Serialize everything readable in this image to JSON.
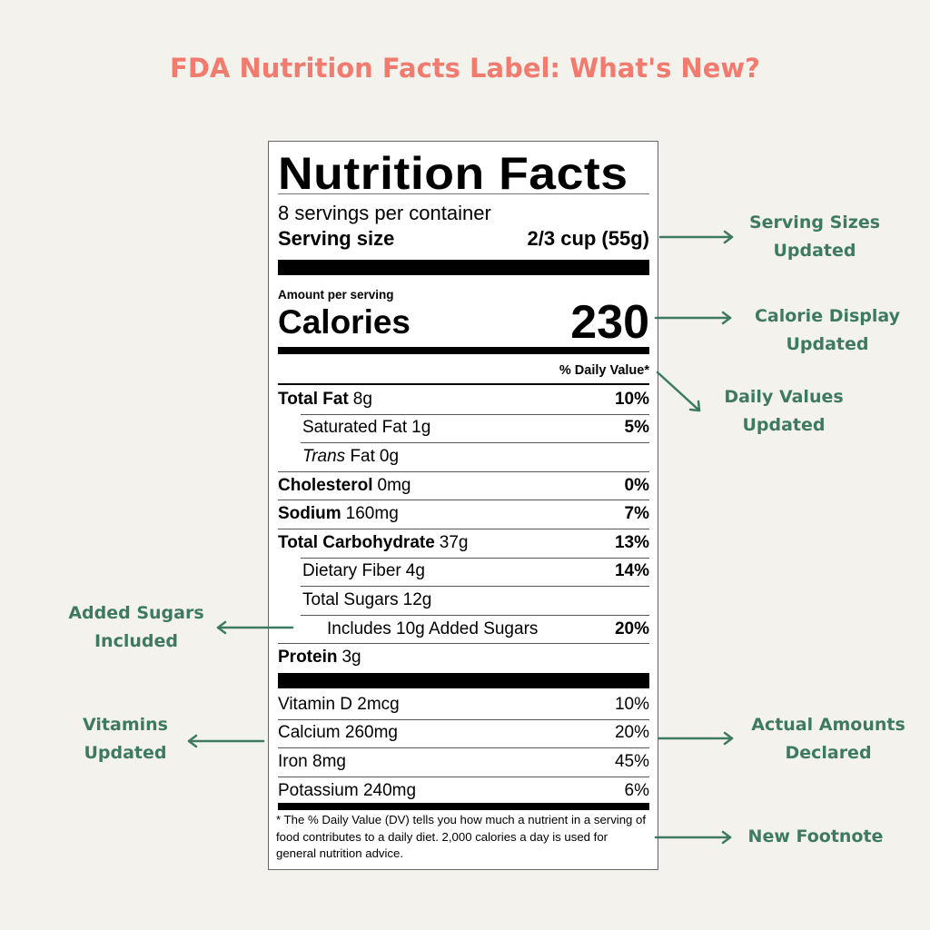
{
  "title": "FDA Nutrition Facts Label: What's New?",
  "label": {
    "heading": "Nutrition Facts",
    "servings": "8 servings per container",
    "serving_size_label": "Serving size",
    "serving_size_value": "2/3 cup (55g)",
    "amount_per_serving": "Amount per serving",
    "calories_label": "Calories",
    "calories_value": "230",
    "dv_header": "% Daily Value*",
    "nutrients": [
      {
        "name": "Total Fat",
        "amount": "8g",
        "dv": "10%",
        "bold": true,
        "indent": 0
      },
      {
        "name": "Saturated Fat",
        "amount": "1g",
        "dv": "5%",
        "bold": false,
        "indent": 1
      },
      {
        "name": "Trans",
        "name_rest": " Fat",
        "amount": "0g",
        "dv": "",
        "bold": false,
        "indent": 1,
        "italic": true
      },
      {
        "name": "Cholesterol",
        "amount": "0mg",
        "dv": "0%",
        "bold": true,
        "indent": 0
      },
      {
        "name": "Sodium",
        "amount": "160mg",
        "dv": "7%",
        "bold": true,
        "indent": 0
      },
      {
        "name": "Total Carbohydrate",
        "amount": "37g",
        "dv": "13%",
        "bold": true,
        "indent": 0
      },
      {
        "name": "Dietary Fiber",
        "amount": "4g",
        "dv": "14%",
        "bold": false,
        "indent": 1
      },
      {
        "name": "Total Sugars",
        "amount": "12g",
        "dv": "",
        "bold": false,
        "indent": 1
      },
      {
        "name": "Includes 10g Added Sugars",
        "amount": "",
        "dv": "20%",
        "bold": false,
        "indent": 2
      },
      {
        "name": "Protein",
        "amount": "3g",
        "dv": "",
        "bold": true,
        "indent": 0
      }
    ],
    "vitamins": [
      {
        "name": "Vitamin D 2mcg",
        "dv": "10%"
      },
      {
        "name": "Calcium 260mg",
        "dv": "20%"
      },
      {
        "name": "Iron 8mg",
        "dv": "45%"
      },
      {
        "name": "Potassium 240mg",
        "dv": "6%"
      }
    ],
    "footnote": "* The % Daily Value (DV) tells you how much a nutrient in a serving of food contributes to a daily diet. 2,000 calories a day is used for general nutrition advice."
  },
  "annotations": [
    {
      "line1": "Serving Sizes",
      "line2": "Updated"
    },
    {
      "line1": "Calorie Display",
      "line2": "Updated"
    },
    {
      "line1": "Daily Values",
      "line2": "Updated"
    },
    {
      "line1": "Added Sugars",
      "line2": "Included"
    },
    {
      "line1": "Vitamins",
      "line2": "Updated"
    },
    {
      "line1": "Actual Amounts",
      "line2": "Declared"
    },
    {
      "line1": "New Footnote",
      "line2": ""
    }
  ],
  "colors": {
    "background": "#f4f2ec",
    "title": "#f07b6e",
    "annotation": "#3e7a62"
  }
}
